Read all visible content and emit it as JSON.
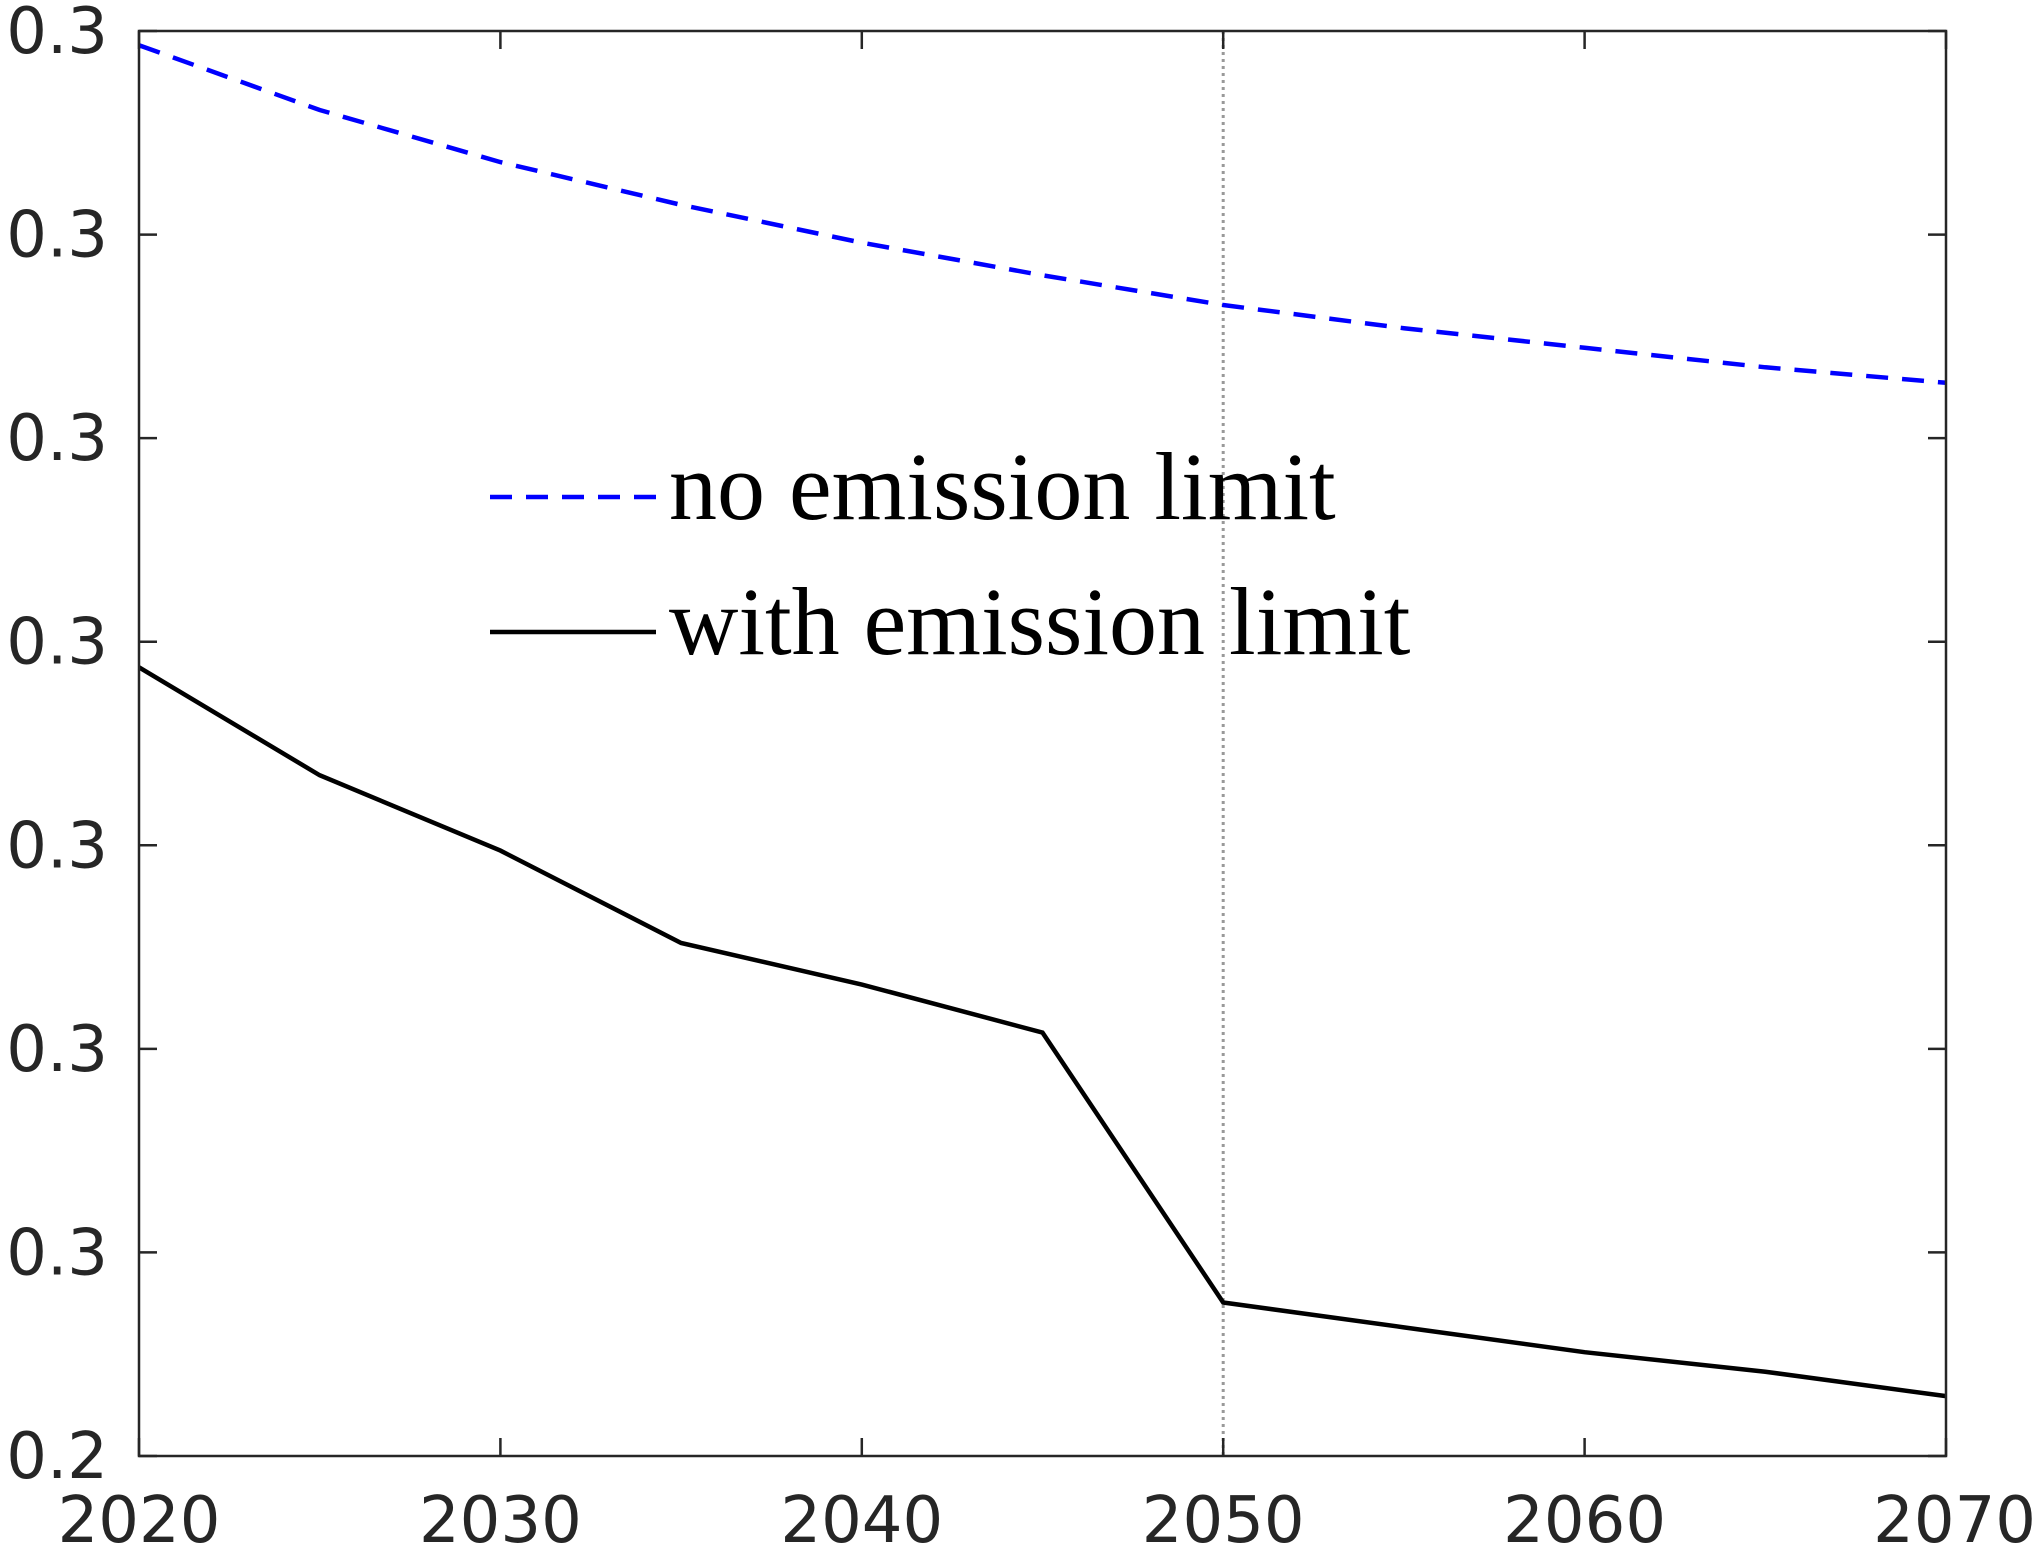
{
  "chart_data": {
    "type": "line",
    "x": [
      2020,
      2025,
      2030,
      2035,
      2040,
      2045,
      2050,
      2055,
      2060,
      2065,
      2070
    ],
    "series": [
      {
        "name": "no emission limit",
        "color": "#0000ff",
        "dash": true,
        "values": [
          0.27965,
          0.27806,
          0.27678,
          0.27573,
          0.2748,
          0.274,
          0.27327,
          0.2727,
          0.27222,
          0.27174,
          0.27136
        ]
      },
      {
        "name": "with emission limit",
        "color": "#000000",
        "dash": false,
        "values": [
          0.26437,
          0.26172,
          0.25987,
          0.2576,
          0.25658,
          0.2554,
          0.24877,
          0.24816,
          0.24755,
          0.24707,
          0.24647
        ]
      }
    ],
    "xlim": [
      2020,
      2070
    ],
    "xticks": [
      2020,
      2030,
      2040,
      2050,
      2060,
      2070
    ],
    "ylim": [
      0.245,
      0.28
    ],
    "yticks": [
      {
        "value": 0.245,
        "label": "0.2"
      },
      {
        "value": 0.25,
        "label": "0.3"
      },
      {
        "value": 0.255,
        "label": "0.3"
      },
      {
        "value": 0.26,
        "label": "0.3"
      },
      {
        "value": 0.265,
        "label": "0.3"
      },
      {
        "value": 0.27,
        "label": "0.3"
      },
      {
        "value": 0.275,
        "label": "0.3"
      },
      {
        "value": 0.28,
        "label": "0.3"
      }
    ],
    "vline": 2050,
    "grid": false
  }
}
